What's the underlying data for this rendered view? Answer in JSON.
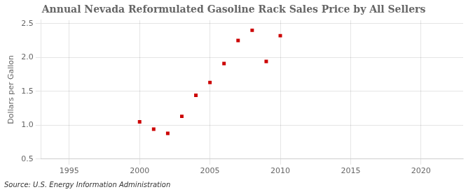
{
  "chart_data": {
    "type": "scatter",
    "title": "Annual Nevada Reformulated Gasoline Rack Sales Price by All Sellers",
    "ylabel": "Dollars per Gallon",
    "annotation": "Source: U.S. Energy Information Administration",
    "x": [
      2000,
      2001,
      2002,
      2003,
      2004,
      2005,
      2006,
      2007,
      2008,
      2009,
      2010
    ],
    "values": [
      1.05,
      0.94,
      0.88,
      1.13,
      1.44,
      1.63,
      1.91,
      2.25,
      2.4,
      1.94,
      2.32
    ],
    "color": "#cc0000",
    "marker": "square",
    "xlim": [
      1993,
      2023
    ],
    "xticks": [
      1995,
      2000,
      2005,
      2010,
      2015,
      2020
    ],
    "ylim": [
      0.5,
      2.55
    ],
    "yticks": [
      0.5,
      {
        "value": 1.0,
        "label": "1.0"
      },
      1.5,
      {
        "value": 2.0,
        "label": "2.0"
      },
      2.5
    ],
    "grid": true
  }
}
